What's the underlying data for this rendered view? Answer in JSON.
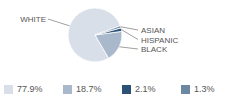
{
  "chart_data": {
    "type": "pie",
    "categories": [
      "WHITE",
      "BLACK",
      "HISPANIC",
      "ASIAN"
    ],
    "values": [
      77.9,
      18.7,
      2.1,
      1.3
    ],
    "value_labels": [
      "77.9%",
      "18.7%",
      "2.1%",
      "1.3%"
    ],
    "colors": [
      "#d8dfe8",
      "#a9b8ca",
      "#2b5276",
      "#6d87a3"
    ]
  }
}
